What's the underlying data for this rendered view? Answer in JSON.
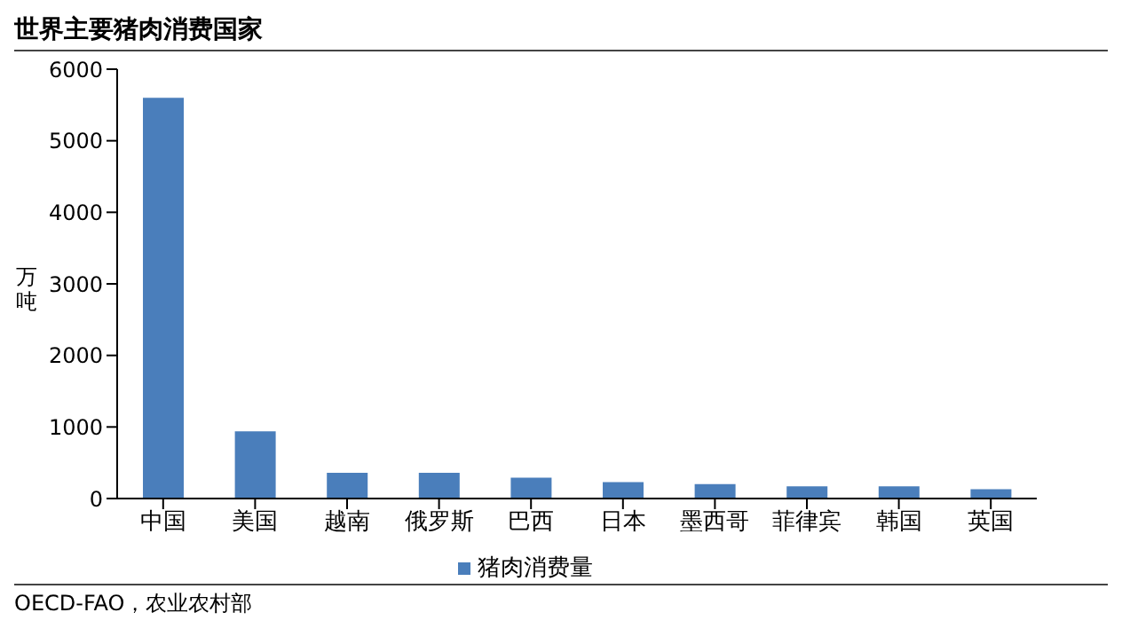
{
  "chart_data": {
    "type": "bar",
    "title": "世界主要猪肉消费国家",
    "ylabel": "万吨",
    "categories": [
      "中国",
      "美国",
      "越南",
      "俄罗斯",
      "巴西",
      "日本",
      "墨西哥",
      "菲律宾",
      "韩国",
      "英国"
    ],
    "series": [
      {
        "name": "猪肉消费量",
        "color": "#4a7ebb",
        "values": [
          5600,
          940,
          360,
          360,
          290,
          230,
          200,
          170,
          170,
          130
        ]
      }
    ],
    "ylim": [
      0,
      6000
    ],
    "yticks": [
      0,
      1000,
      2000,
      3000,
      4000,
      5000,
      6000
    ],
    "grid": false,
    "legend": "bottom",
    "annotations": [
      "OECD-FAO，农业农村部"
    ]
  }
}
